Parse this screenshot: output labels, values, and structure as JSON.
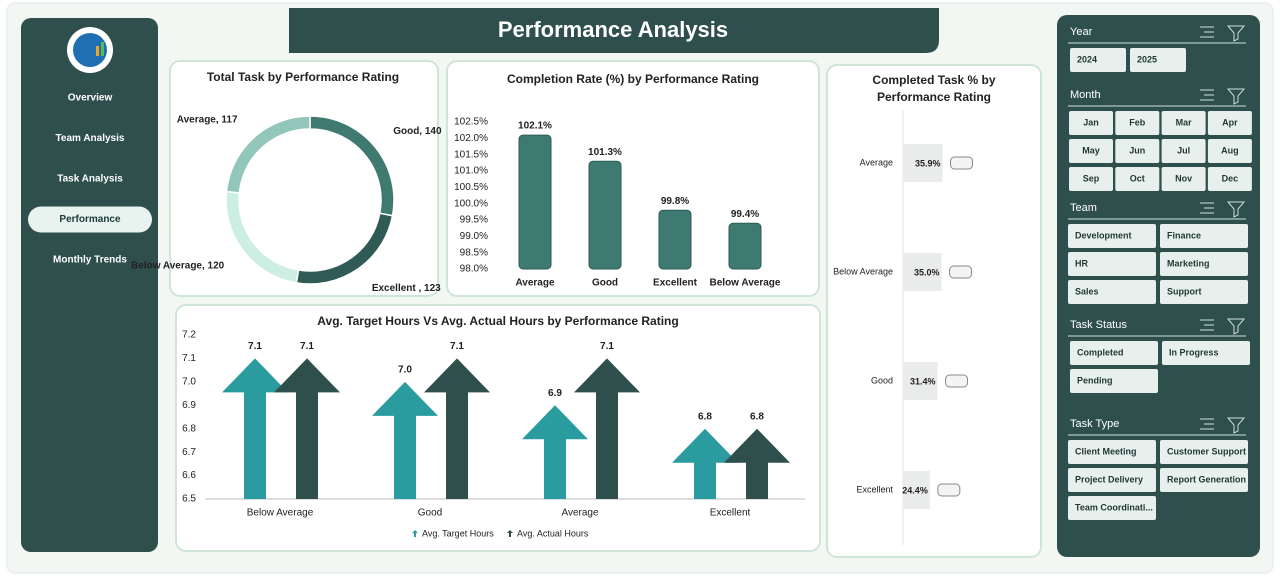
{
  "header": {
    "title": "Performance Analysis"
  },
  "sidebar": {
    "items": [
      "Overview",
      "Team Analysis",
      "Task Analysis",
      "Performance",
      "Monthly Trends"
    ],
    "active": 3
  },
  "chart_data": [
    {
      "type": "donut",
      "title": "Total Task by Performance Rating",
      "categories": [
        "Good",
        "Excellent",
        "Below Average",
        "Average"
      ],
      "values": [
        140,
        123,
        120,
        117
      ],
      "value_labels": [
        "Good, 140",
        "Excellent , 123",
        "Below Average, 120",
        "Average, 117"
      ],
      "colors": [
        "#3f7a71",
        "#2f5a55",
        "#cdeee2",
        "#93c6ba"
      ]
    },
    {
      "type": "bar",
      "title": "Completion Rate (%) by Performance Rating",
      "categories": [
        "Average",
        "Good",
        "Excellent",
        "Below Average"
      ],
      "values": [
        102.1,
        101.3,
        99.8,
        99.4
      ],
      "value_labels": [
        "102.1%",
        "101.3%",
        "99.8%",
        "99.4%"
      ],
      "color": "#3f7a72",
      "ylim": [
        98,
        102.5
      ],
      "yticks": [
        {
          "value": 98,
          "label": "98.0%"
        },
        {
          "value": 98.5,
          "label": "98.5%"
        },
        {
          "value": 99,
          "label": "99.0%"
        },
        {
          "value": 99.5,
          "label": "99.5%"
        },
        {
          "value": 100,
          "label": "100.0%"
        },
        {
          "value": 100.5,
          "label": "100.5%"
        },
        {
          "value": 101,
          "label": "101.0%"
        },
        {
          "value": 101.5,
          "label": "101.5%"
        },
        {
          "value": 102,
          "label": "102.0%"
        },
        {
          "value": 102.5,
          "label": "102.5%"
        }
      ]
    },
    {
      "type": "arrow",
      "title": "Avg. Target Hours Vs Avg. Actual Hours by Performance Rating",
      "categories": [
        "Below Average",
        "Good",
        "Average",
        "Excellent"
      ],
      "series": [
        {
          "name": "Avg. Target Hours",
          "color": "#2a9ca0",
          "values": [
            7.1,
            7.0,
            6.9,
            6.8
          ],
          "value_labels": [
            "7.1",
            "7.0",
            "6.9",
            "6.8"
          ]
        },
        {
          "name": "Avg. Actual Hours",
          "color": "#2f4f4c",
          "values": [
            7.1,
            7.1,
            7.1,
            6.8
          ],
          "value_labels": [
            "7.1",
            "7.1",
            "7.1",
            "6.8"
          ]
        }
      ],
      "ylim": [
        6.5,
        7.2
      ],
      "yticks": [
        6.5,
        6.6,
        6.7,
        6.8,
        6.9,
        {
          "value": 7,
          "label": "7.0"
        },
        7.1,
        7.2
      ],
      "legend": "bottom"
    },
    {
      "type": "hbar",
      "title": "Completed Task % by Performance Rating",
      "categories": [
        "Average",
        "Below Average",
        "Good",
        "Excellent"
      ],
      "values": [
        35.9,
        35.0,
        31.4,
        24.4
      ],
      "value_labels": [
        "35.9%",
        "35.0%",
        "31.4%",
        "24.4%"
      ],
      "color": "#e9ecea"
    }
  ],
  "slicers": [
    {
      "title": "Year",
      "items": [
        "2024",
        "2025"
      ]
    },
    {
      "title": "Month",
      "items": [
        "Jan",
        "Feb",
        "Mar",
        "Apr",
        "May",
        "Jun",
        "Jul",
        "Aug",
        "Sep",
        "Oct",
        "Nov",
        "Dec"
      ]
    },
    {
      "title": "Team",
      "items": [
        "Development",
        "Finance",
        "HR",
        "Marketing",
        "Sales",
        "Support"
      ]
    },
    {
      "title": "Task Status",
      "items": [
        "Completed",
        "In Progress",
        "Pending"
      ]
    },
    {
      "title": "Task Type",
      "items": [
        "Client Meeting",
        "Customer Support",
        "Project Delivery",
        "Report Generation",
        "Team Coordinati..."
      ]
    }
  ]
}
